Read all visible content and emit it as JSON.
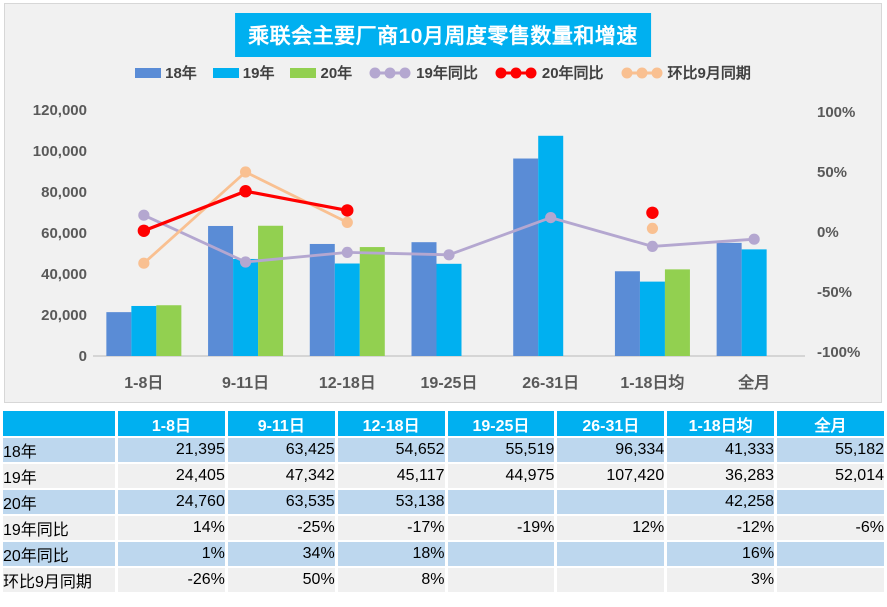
{
  "chart": {
    "title": "乘联会主要厂商10月周度零售数量和增速",
    "legend": [
      {
        "label": "18年",
        "type": "bar",
        "color": "#5A8CD6"
      },
      {
        "label": "19年",
        "type": "bar",
        "color": "#00B0F0"
      },
      {
        "label": "20年",
        "type": "bar",
        "color": "#92D050"
      },
      {
        "label": "19年同比",
        "type": "line",
        "color": "#B4A7D0"
      },
      {
        "label": "20年同比",
        "type": "line",
        "color": "#FF0000"
      },
      {
        "label": "环比9月同期",
        "type": "line",
        "color": "#F9C091"
      }
    ]
  },
  "chart_data": {
    "type": "bar",
    "combo": "bars on left value axis, lines on right percent axis",
    "categories": [
      "1-8日",
      "9-11日",
      "12-18日",
      "19-25日",
      "26-31日",
      "1-18日均",
      "全月"
    ],
    "bar_series": [
      {
        "name": "18年",
        "color": "#5A8CD6",
        "values": [
          21395,
          63425,
          54652,
          55519,
          96334,
          41333,
          55182
        ]
      },
      {
        "name": "19年",
        "color": "#00B0F0",
        "values": [
          24405,
          47342,
          45117,
          44975,
          107420,
          36283,
          52014
        ]
      },
      {
        "name": "20年",
        "color": "#92D050",
        "values": [
          24760,
          63535,
          53138,
          null,
          null,
          42258,
          null
        ]
      }
    ],
    "line_series": [
      {
        "name": "19年同比",
        "color": "#B4A7D0",
        "values_pct": [
          14,
          -25,
          -17,
          -19,
          12,
          -12,
          -6
        ]
      },
      {
        "name": "环比9月同期",
        "color": "#F9C091",
        "values_pct": [
          -26,
          50,
          8,
          null,
          null,
          3,
          null
        ]
      },
      {
        "name": "20年同比",
        "color": "#FF0000",
        "values_pct": [
          1,
          34,
          18,
          null,
          null,
          16,
          null
        ]
      }
    ],
    "left_axis": {
      "min": 0,
      "max": 120000,
      "ticks": [
        {
          "v": 0,
          "label": "0"
        },
        {
          "v": 20000,
          "label": "20,000"
        },
        {
          "v": 40000,
          "label": "40,000"
        },
        {
          "v": 60000,
          "label": "60,000"
        },
        {
          "v": 80000,
          "label": "80,000"
        },
        {
          "v": 100000,
          "label": "100,000"
        },
        {
          "v": 120000,
          "label": "120,000"
        }
      ]
    },
    "right_axis": {
      "min": -100,
      "max": 100,
      "ticks": [
        {
          "v": 100,
          "label": "100%"
        },
        {
          "v": 50,
          "label": "50%"
        },
        {
          "v": 0,
          "label": "0%"
        },
        {
          "v": -50,
          "label": "-50%"
        },
        {
          "v": -100,
          "label": "-100%"
        }
      ]
    },
    "grid": false,
    "legend_position": "top",
    "title": "乘联会主要厂商10月周度零售数量和增速"
  },
  "table": {
    "columns": [
      "",
      "1-8日",
      "9-11日",
      "12-18日",
      "19-25日",
      "26-31日",
      "1-18日均",
      "全月"
    ],
    "rows": [
      {
        "label": "18年",
        "cells": [
          "21,395",
          "63,425",
          "54,652",
          "55,519",
          "96,334",
          "41,333",
          "55,182"
        ]
      },
      {
        "label": "19年",
        "cells": [
          "24,405",
          "47,342",
          "45,117",
          "44,975",
          "107,420",
          "36,283",
          "52,014"
        ]
      },
      {
        "label": "20年",
        "cells": [
          "24,760",
          "63,535",
          "53,138",
          "",
          "",
          "42,258",
          ""
        ]
      },
      {
        "label": "19年同比",
        "cells": [
          "14%",
          "-25%",
          "-17%",
          "-19%",
          "12%",
          "-12%",
          "-6%"
        ]
      },
      {
        "label": "20年同比",
        "cells": [
          "1%",
          "34%",
          "18%",
          "",
          "",
          "16%",
          ""
        ]
      },
      {
        "label": "环比9月同期",
        "cells": [
          "-26%",
          "50%",
          "8%",
          "",
          "",
          "3%",
          ""
        ]
      }
    ]
  },
  "colors": {
    "header_bg": "#00B0F0",
    "panel_bg": "#F1F1F1",
    "axis_text": "#595959",
    "row_alt_blue": "#BDD7EE",
    "row_alt_gray": "#F0F0F0",
    "baseline": "#CCCCCC"
  }
}
